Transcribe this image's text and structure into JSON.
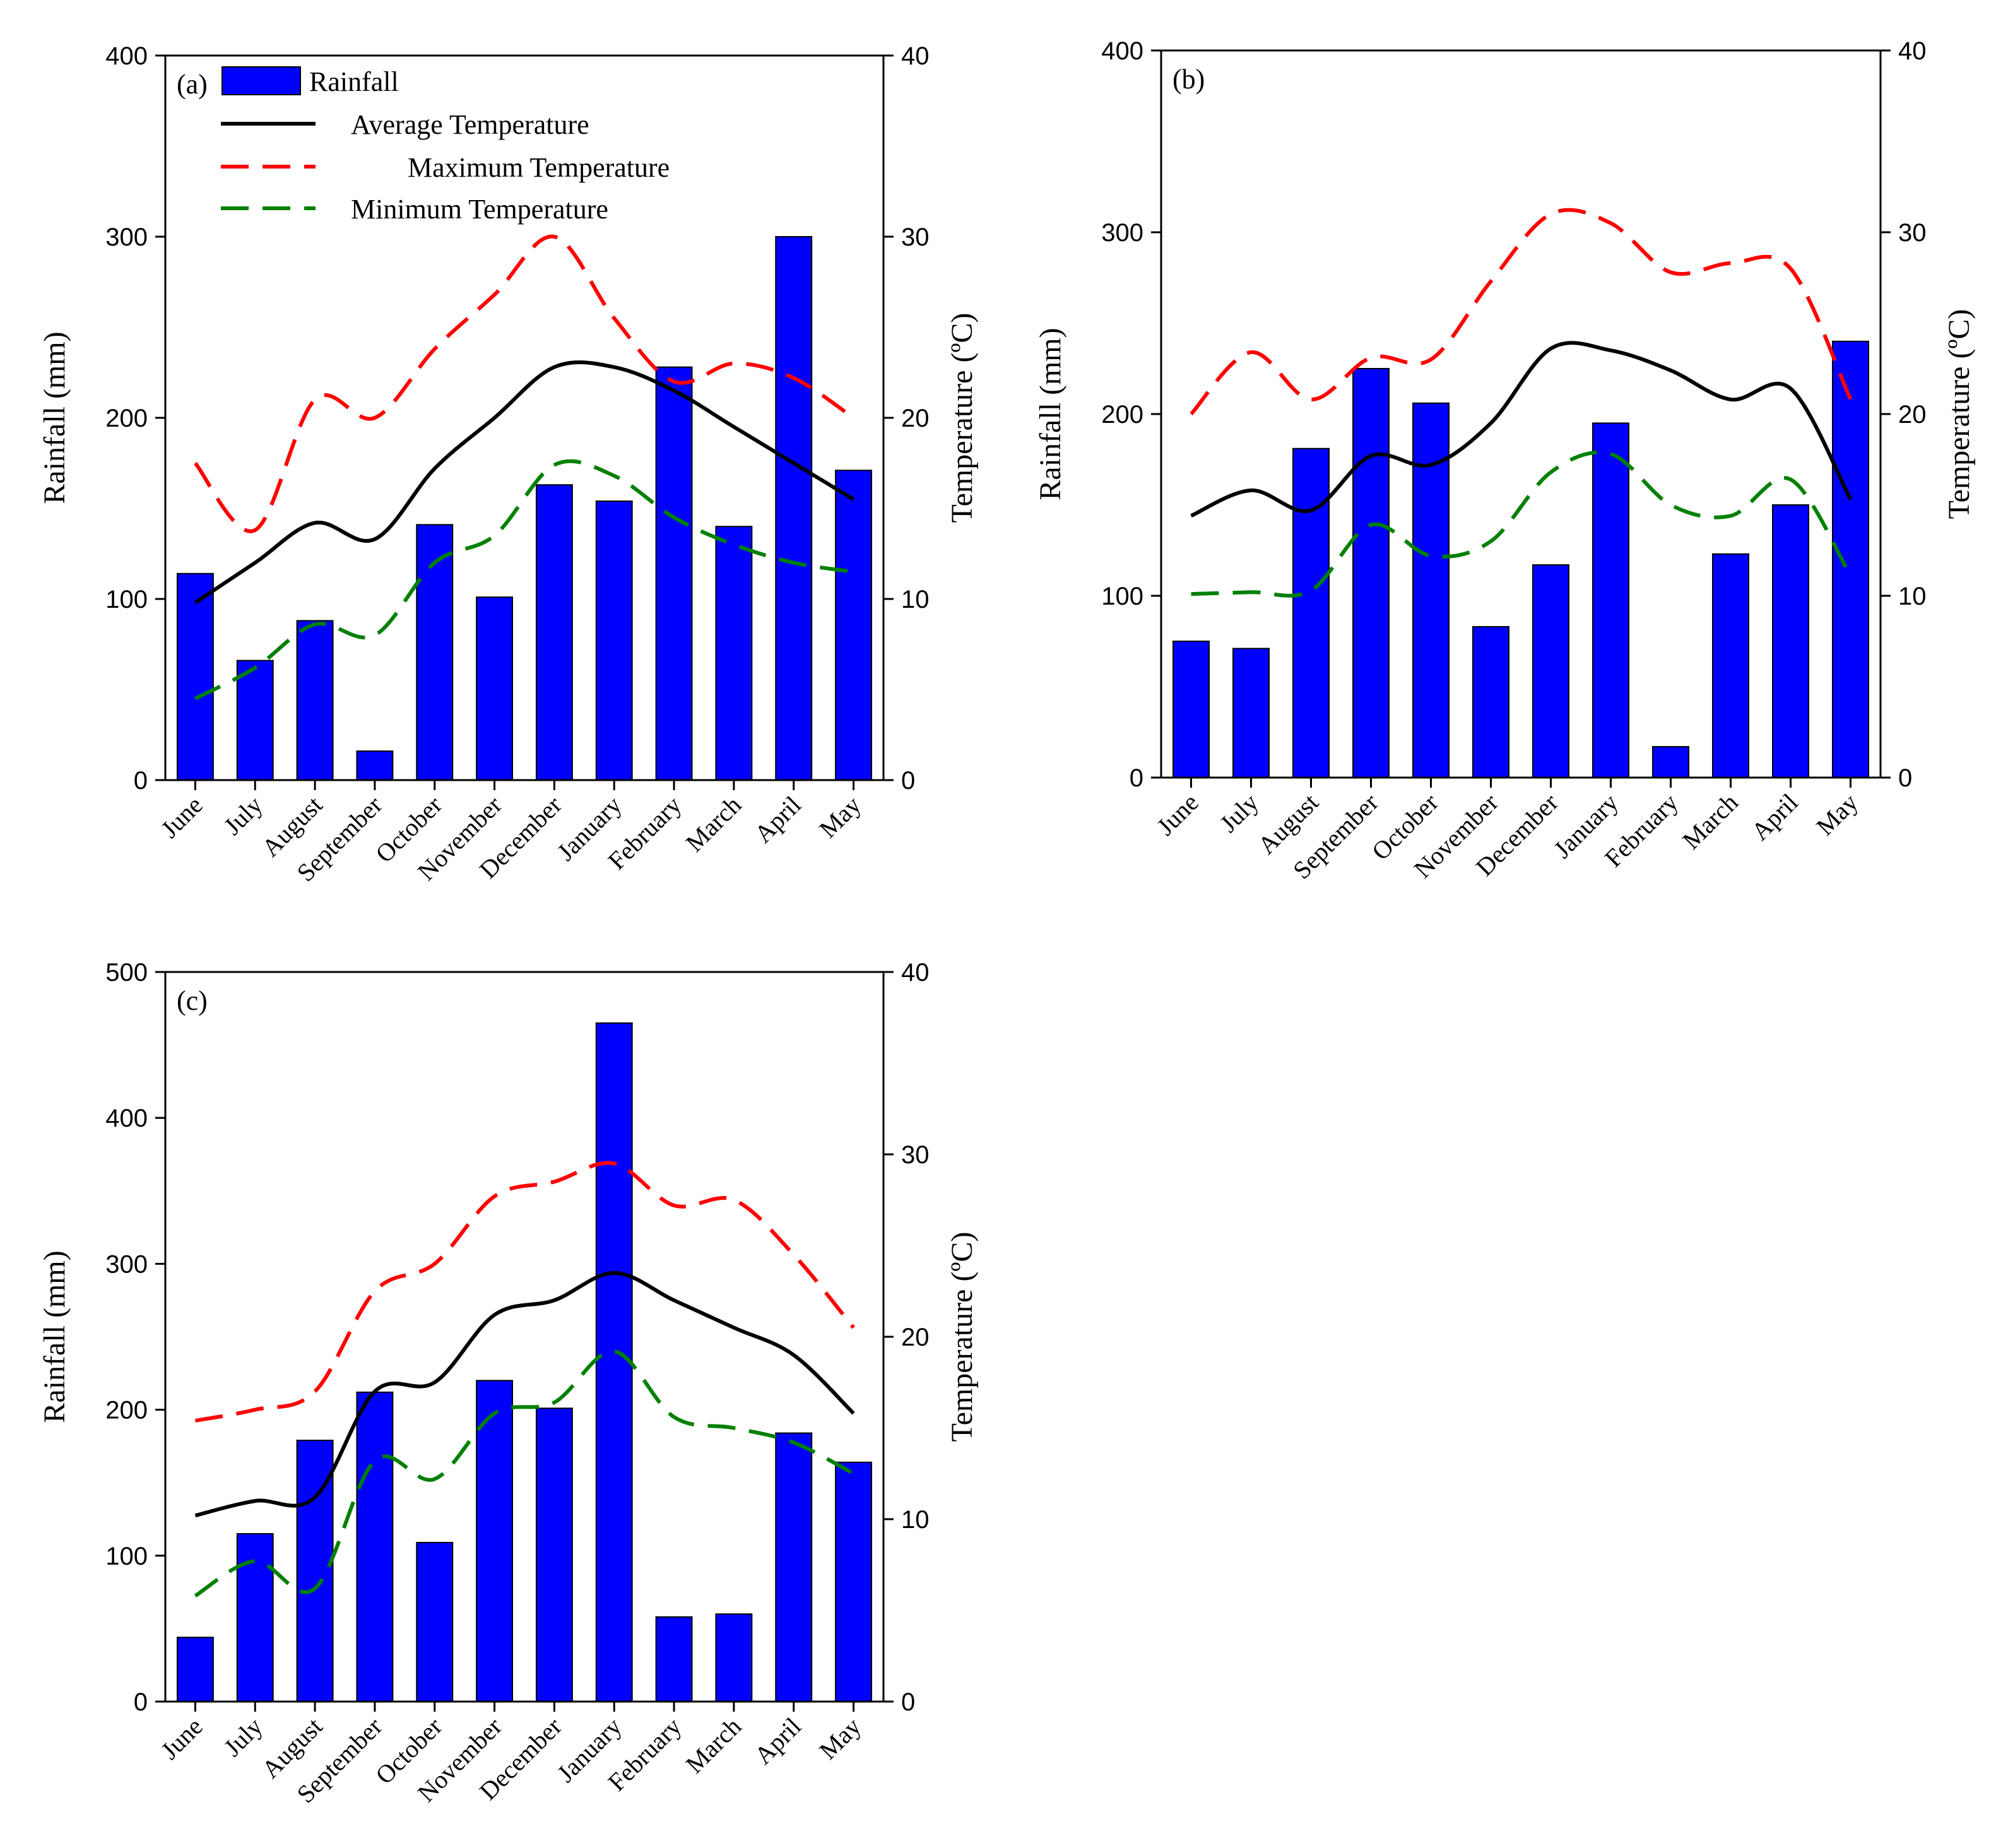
{
  "colors": {
    "rainfall": "#0000ff",
    "average": "#000000",
    "maximum": "#ff0000",
    "minimum": "#008000"
  },
  "legend": [
    {
      "key": "rainfall",
      "label": "Rainfall",
      "style": "bar"
    },
    {
      "key": "average",
      "label": "Average Temperature",
      "style": "solid"
    },
    {
      "key": "maximum",
      "label": "Maximum Temperature",
      "style": "dash"
    },
    {
      "key": "minimum",
      "label": "Minimum Temperature",
      "style": "dash"
    }
  ],
  "chart_data": [
    {
      "panel": "(a)",
      "type": "bar+line",
      "categories": [
        "June",
        "July",
        "August",
        "September",
        "October",
        "November",
        "December",
        "January",
        "February",
        "March",
        "April",
        "May"
      ],
      "ylabel_left": "Rainfall (mm)",
      "ylabel_right": "Temperature (ºC)",
      "ylim_left": [
        0,
        400
      ],
      "ylim_right": [
        0,
        40
      ],
      "yticks_left": [
        0,
        100,
        200,
        300,
        400
      ],
      "yticks_right": [
        0,
        10,
        20,
        30,
        40
      ],
      "show_legend": true,
      "legend_position": "top-left",
      "series": [
        {
          "name": "Rainfall",
          "key": "rainfall",
          "axis": "left",
          "values": [
            114,
            66,
            88,
            16,
            141,
            101,
            163,
            154,
            228,
            140,
            300,
            171
          ]
        },
        {
          "name": "Average Temperature",
          "key": "average",
          "axis": "right",
          "values": [
            9.8,
            12.0,
            14.2,
            13.3,
            17.2,
            20.0,
            22.8,
            22.8,
            21.5,
            19.5,
            17.5,
            15.5
          ]
        },
        {
          "name": "Maximum Temperature",
          "key": "maximum",
          "axis": "right",
          "values": [
            17.5,
            13.8,
            21.0,
            20.0,
            23.8,
            26.8,
            30.0,
            25.5,
            22.0,
            23.0,
            22.2,
            20.0
          ]
        },
        {
          "name": "Minimum Temperature",
          "key": "minimum",
          "axis": "right",
          "values": [
            4.5,
            6.2,
            8.6,
            8.0,
            12.0,
            13.5,
            17.4,
            16.8,
            14.5,
            13.0,
            12.0,
            11.5
          ]
        }
      ]
    },
    {
      "panel": "(b)",
      "type": "bar+line",
      "categories": [
        "June",
        "July",
        "August",
        "September",
        "October",
        "November",
        "December",
        "January",
        "February",
        "March",
        "April",
        "May"
      ],
      "ylabel_left": "Rainfall (mm)",
      "ylabel_right": "Temperature (ºC)",
      "ylim_left": [
        0,
        400
      ],
      "ylim_right": [
        0,
        40
      ],
      "yticks_left": [
        0,
        100,
        200,
        300,
        400
      ],
      "yticks_right": [
        0,
        10,
        20,
        30,
        40
      ],
      "show_legend": false,
      "series": [
        {
          "name": "Rainfall",
          "key": "rainfall",
          "axis": "left",
          "values": [
            75,
            71,
            181,
            225,
            206,
            83,
            117,
            195,
            17,
            123,
            150,
            240
          ]
        },
        {
          "name": "Average Temperature",
          "key": "average",
          "axis": "right",
          "values": [
            14.4,
            15.8,
            14.7,
            17.7,
            17.2,
            19.5,
            23.6,
            23.5,
            22.4,
            20.8,
            21.4,
            15.3
          ]
        },
        {
          "name": "Maximum Temperature",
          "key": "maximum",
          "axis": "right",
          "values": [
            20.0,
            23.4,
            20.8,
            23.1,
            23.0,
            27.3,
            31.0,
            30.5,
            27.8,
            28.3,
            28.0,
            20.8
          ]
        },
        {
          "name": "Minimum Temperature",
          "key": "minimum",
          "axis": "right",
          "values": [
            10.1,
            10.2,
            10.3,
            13.9,
            12.2,
            13.0,
            16.8,
            17.8,
            15.0,
            14.4,
            16.4,
            11.1
          ]
        }
      ]
    },
    {
      "panel": "(c)",
      "type": "bar+line",
      "categories": [
        "June",
        "July",
        "August",
        "September",
        "October",
        "November",
        "December",
        "January",
        "February",
        "March",
        "April",
        "May"
      ],
      "ylabel_left": "Rainfall (mm)",
      "ylabel_right": "Temperature (ºC)",
      "ylim_left": [
        0,
        500
      ],
      "ylim_right": [
        0,
        40
      ],
      "yticks_left": [
        0,
        100,
        200,
        300,
        400,
        500
      ],
      "yticks_right": [
        0,
        10,
        20,
        30,
        40
      ],
      "show_legend": false,
      "series": [
        {
          "name": "Rainfall",
          "key": "rainfall",
          "axis": "left",
          "values": [
            44,
            115,
            179,
            212,
            109,
            220,
            201,
            465,
            58,
            60,
            184,
            164
          ]
        },
        {
          "name": "Average Temperature",
          "key": "average",
          "axis": "right",
          "values": [
            10.2,
            11.0,
            11.2,
            17.0,
            17.5,
            21.2,
            22.0,
            23.5,
            22.0,
            20.5,
            19.0,
            15.8
          ]
        },
        {
          "name": "Maximum Temperature",
          "key": "maximum",
          "axis": "right",
          "values": [
            15.4,
            16.0,
            17.0,
            22.5,
            24.0,
            27.7,
            28.5,
            29.5,
            27.2,
            27.5,
            24.5,
            20.5
          ]
        },
        {
          "name": "Minimum Temperature",
          "key": "minimum",
          "axis": "right",
          "values": [
            5.8,
            7.7,
            6.2,
            13.2,
            12.2,
            15.8,
            16.4,
            19.2,
            15.6,
            15.0,
            14.2,
            12.5
          ]
        }
      ]
    }
  ]
}
